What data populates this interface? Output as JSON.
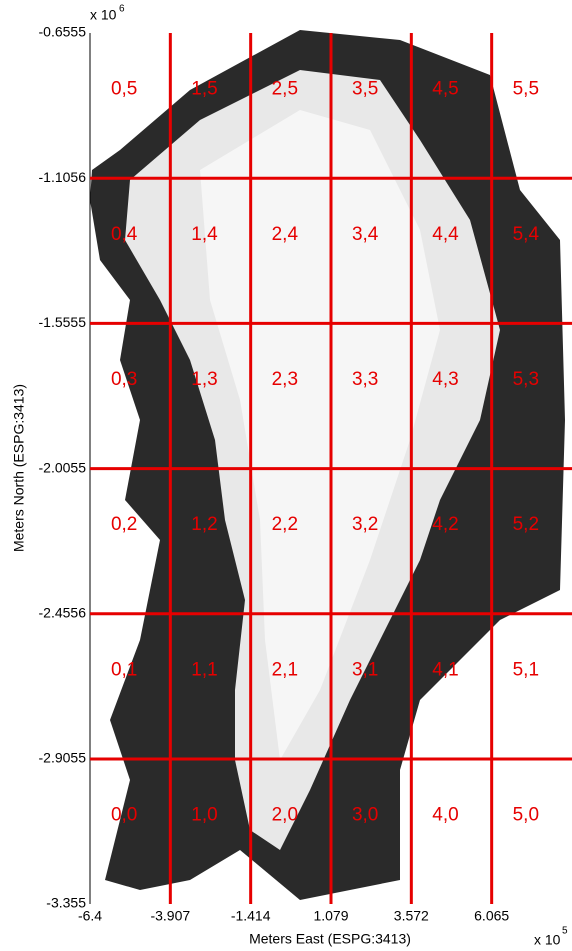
{
  "chart_data": {
    "type": "tile-grid",
    "xlabel": "Meters East (ESPG:3413)",
    "ylabel": "Meters North (ESPG:3413)",
    "x_multiplier": {
      "base": "x 10",
      "power": "5"
    },
    "y_multiplier": {
      "base": "x 10",
      "power": "6"
    },
    "xlim": [
      -6.4,
      8.558
    ],
    "ylim": [
      -3.355,
      -0.6555
    ],
    "xticks": [
      -6.4,
      -3.907,
      -1.414,
      1.079,
      3.572,
      6.065
    ],
    "yticks": [
      -3.355,
      -2.9055,
      -2.4556,
      -2.0055,
      -1.5555,
      -1.1056,
      -0.6555
    ],
    "grid": true,
    "grid_color": "#e60000",
    "tile_labels": [
      [
        "0,5",
        "1,5",
        "2,5",
        "3,5",
        "4,5",
        "5,5"
      ],
      [
        "0,4",
        "1,4",
        "2,4",
        "3,4",
        "4,4",
        "5,4"
      ],
      [
        "0,3",
        "1,3",
        "2,3",
        "3,3",
        "4,3",
        "5,3"
      ],
      [
        "0,2",
        "1,2",
        "2,2",
        "3,2",
        "4,2",
        "5,2"
      ],
      [
        "0,1",
        "1,1",
        "2,1",
        "3,1",
        "4,1",
        "5,1"
      ],
      [
        "0,0",
        "1,0",
        "2,0",
        "3,0",
        "4,0",
        "5,0"
      ]
    ]
  }
}
